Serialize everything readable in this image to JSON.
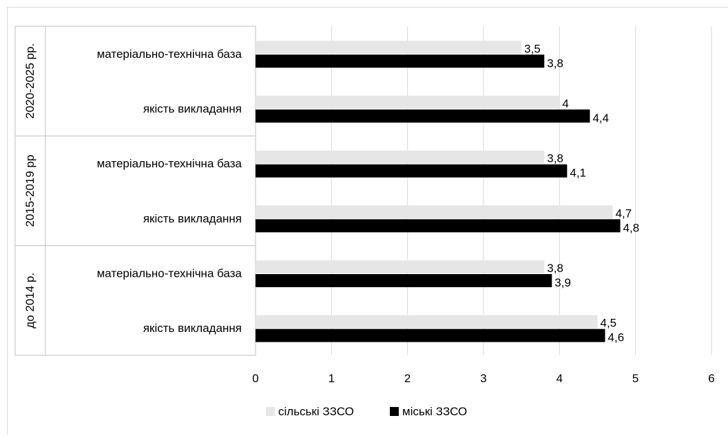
{
  "chart_data": {
    "type": "bar",
    "orientation": "horizontal",
    "title": "",
    "xlabel": "",
    "ylabel": "",
    "xlim": [
      0,
      6
    ],
    "x_ticks": [
      "0",
      "1",
      "2",
      "3",
      "4",
      "5",
      "6"
    ],
    "grid": "vertical",
    "legend_position": "bottom",
    "groups": [
      {
        "label": "2020-2025 рр.",
        "categories": [
          "матеріально-технічна база",
          "якість викладання"
        ]
      },
      {
        "label": "2015-2019 рр",
        "categories": [
          "матеріально-технічна база",
          "якість викладання"
        ]
      },
      {
        "label": "до 2014 р.",
        "categories": [
          "матеріально-технічна база",
          "якість викладання"
        ]
      }
    ],
    "series": [
      {
        "name": "сільські ЗЗСО",
        "color": "#e6e6e6",
        "values": [
          3.5,
          4,
          3.8,
          4.7,
          3.8,
          4.5
        ],
        "labels": [
          "3,5",
          "4",
          "3,8",
          "4,7",
          "3,8",
          "4,5"
        ]
      },
      {
        "name": "міські ЗЗСО",
        "color": "#000000",
        "values": [
          3.8,
          4.4,
          4.1,
          4.8,
          3.9,
          4.6
        ],
        "labels": [
          "3,8",
          "4,4",
          "4,1",
          "4,8",
          "3,9",
          "4,6"
        ]
      }
    ]
  }
}
